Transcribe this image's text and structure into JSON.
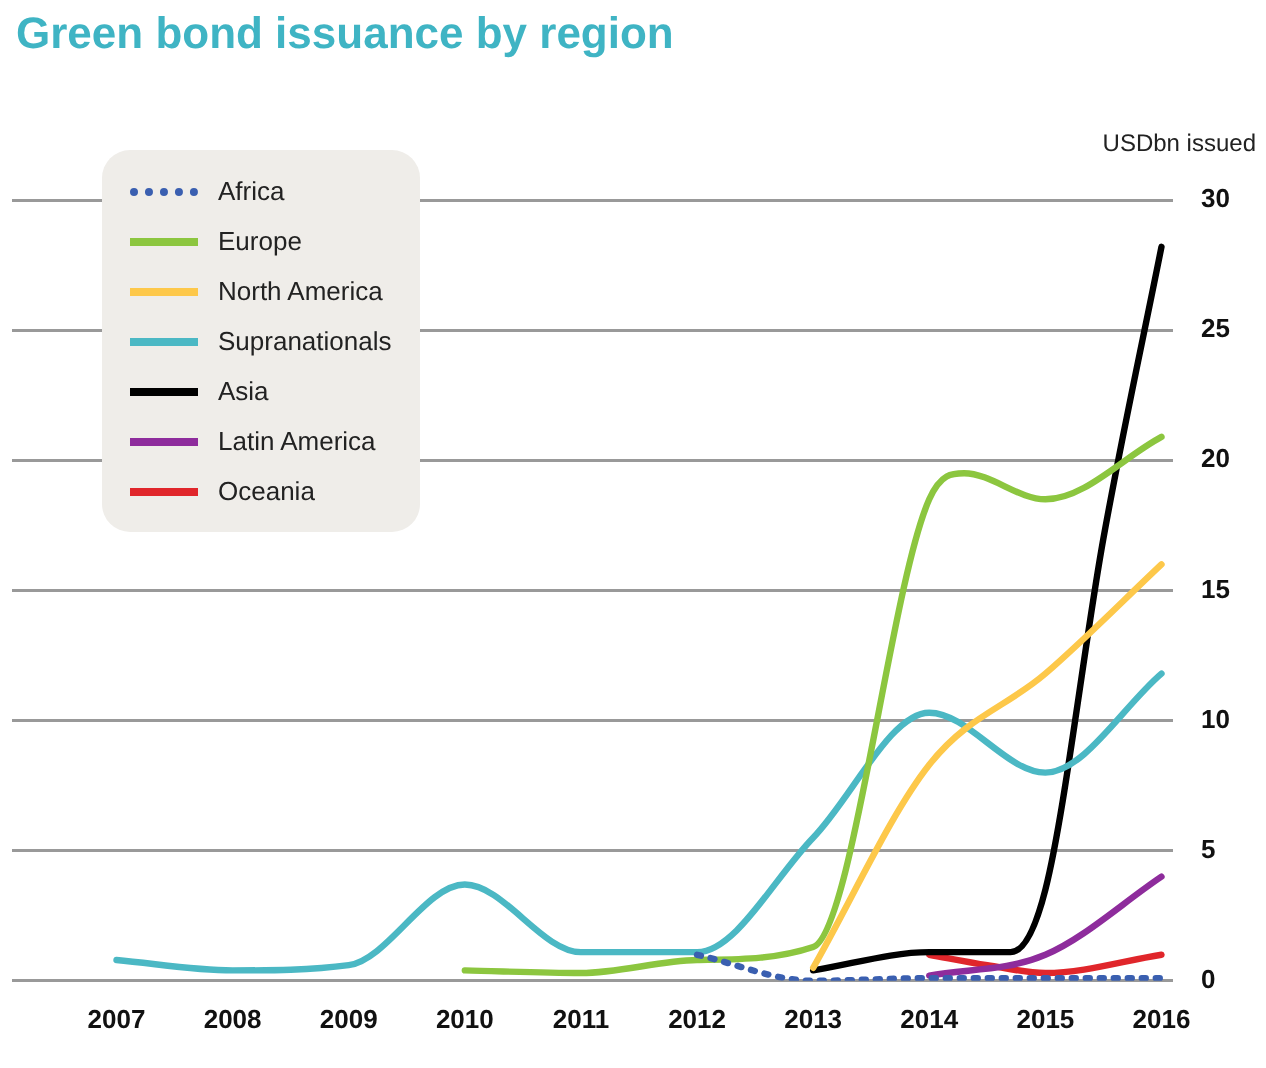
{
  "chart_data": {
    "type": "line",
    "title": "Green bond issuance by region",
    "ylabel": "USDbn issued",
    "xlim": [
      2006.1,
      2016.1
    ],
    "xticks": [
      2007,
      2008,
      2009,
      2010,
      2011,
      2012,
      2013,
      2014,
      2015,
      2016
    ],
    "ylim": [
      0,
      30
    ],
    "yticks": [
      0,
      5,
      10,
      15,
      20,
      25,
      30
    ],
    "grid": "y",
    "legend": "top left",
    "marker": "none",
    "series": [
      {
        "name": "Africa",
        "color": "#3a5fb0",
        "line_style": "dotted",
        "x": [
          2012,
          2013,
          2014,
          2015,
          2016
        ],
        "values": [
          1.0,
          0.0,
          0.1,
          0.1,
          0.1
        ]
      },
      {
        "name": "Europe",
        "color": "#8cc63f",
        "x": [
          2010,
          2011,
          2012,
          2013,
          2014,
          2014.3,
          2015,
          2016
        ],
        "values": [
          0.4,
          0.3,
          0.8,
          1.3,
          18.5,
          19.5,
          18.5,
          20.9
        ]
      },
      {
        "name": "North America",
        "color": "#fdc84a",
        "x": [
          2013,
          2014,
          2015,
          2016
        ],
        "values": [
          0.5,
          8.3,
          11.8,
          16.0
        ]
      },
      {
        "name": "Supranationals",
        "color": "#4bb8c4",
        "x": [
          2007,
          2008,
          2009,
          2010,
          2011,
          2012,
          2013,
          2014,
          2015,
          2016
        ],
        "values": [
          0.8,
          0.4,
          0.6,
          3.7,
          1.1,
          1.1,
          5.5,
          10.3,
          8.0,
          11.8
        ]
      },
      {
        "name": "Asia",
        "color": "#000000",
        "x": [
          2013,
          2014,
          2014.7,
          2015,
          2015.5,
          2016
        ],
        "values": [
          0.4,
          1.1,
          1.1,
          3.5,
          17.0,
          28.2
        ]
      },
      {
        "name": "Latin America",
        "color": "#8e2c9c",
        "x": [
          2014,
          2015,
          2016
        ],
        "values": [
          0.2,
          1.0,
          4.0
        ]
      },
      {
        "name": "Oceania",
        "color": "#e0262b",
        "x": [
          2014,
          2014.5,
          2015,
          2016
        ],
        "values": [
          1.0,
          0.6,
          0.3,
          1.0
        ]
      }
    ]
  }
}
